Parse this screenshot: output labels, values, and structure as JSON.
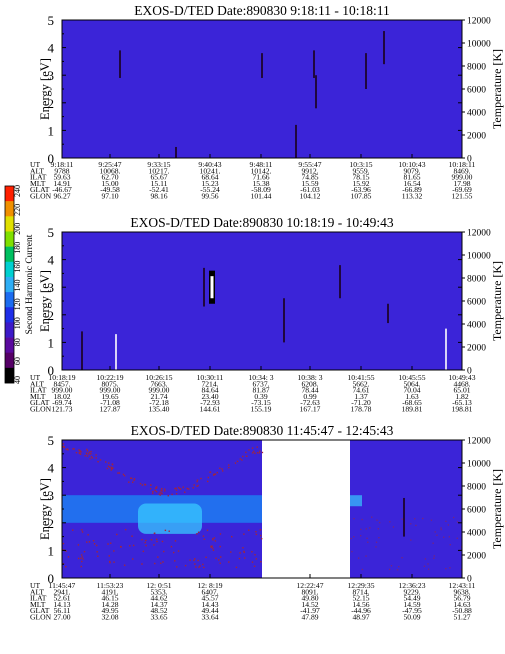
{
  "colors": {
    "background": "#3b24d8",
    "streak": "#1a0018",
    "streak_hot": "#ffffff",
    "hot_blue": "#1f7cf2",
    "cyan": "#38c8ff",
    "dot_red": "#a2263c"
  },
  "colorbar": {
    "label": "Second Harmonic Current",
    "ticks": [
      "40",
      "60",
      "80",
      "100",
      "120",
      "140",
      "160",
      "180",
      "200",
      "220",
      "240"
    ],
    "colors": [
      "#000000",
      "#550066",
      "#5a0a9e",
      "#3c1ac8",
      "#1e2ee8",
      "#1c6cf0",
      "#2eaef5",
      "#00d0d0",
      "#00c060",
      "#80e000",
      "#e0e000",
      "#f09000",
      "#ff2000"
    ]
  },
  "row_labels": [
    "UT",
    "ALT",
    "ILAT",
    "MLT",
    "GLAT",
    "GLON"
  ],
  "chart_data": [
    {
      "type": "heatmap",
      "title": "EXOS-D/TED   Date:890830  9:18:11 - 10:18:11",
      "ylabel": "Energy [eV]",
      "y2label": "Temperature [K]",
      "ylim": [
        0,
        5
      ],
      "y2lim": [
        0,
        12000
      ],
      "yticks": [
        "0",
        "1",
        "2",
        "3",
        "4",
        "5"
      ],
      "y2ticks": [
        "0",
        "2000",
        "4000",
        "6000",
        "8000",
        "10000",
        "12000"
      ],
      "blank_ranges": [],
      "streaks": [
        {
          "x": 0.145,
          "y1": 2.9,
          "y2": 3.9,
          "style": "dark"
        },
        {
          "x": 0.285,
          "y1": 0.0,
          "y2": 0.4,
          "style": "dark"
        },
        {
          "x": 0.5,
          "y1": 2.9,
          "y2": 3.8,
          "style": "dark"
        },
        {
          "x": 0.585,
          "y1": 0.0,
          "y2": 1.2,
          "style": "dark"
        },
        {
          "x": 0.63,
          "y1": 2.9,
          "y2": 3.9,
          "style": "dark"
        },
        {
          "x": 0.635,
          "y1": 1.8,
          "y2": 3.0,
          "style": "dark"
        },
        {
          "x": 0.76,
          "y1": 2.5,
          "y2": 3.8,
          "style": "dark"
        },
        {
          "x": 0.805,
          "y1": 3.4,
          "y2": 4.6,
          "style": "dark"
        }
      ],
      "rows": [
        [
          "9:18:11",
          "9:25:47",
          "9:33:15",
          "9:40:43",
          "9:48:11",
          "9:55:47",
          "10:3:15",
          "10:10:43",
          "10:18:11"
        ],
        [
          "9788",
          "10068.",
          "10217.",
          "10241.",
          "10142.",
          "9912.",
          "9559.",
          "9079.",
          "8469."
        ],
        [
          "59.63",
          "62.70",
          "65.67",
          "68.64",
          "71.66",
          "74.85",
          "78.15",
          "81.65",
          "999.00"
        ],
        [
          "14.91",
          "15.00",
          "15.11",
          "15.23",
          "15.38",
          "15.59",
          "15.92",
          "16.54",
          "17.98"
        ],
        [
          "-46.67",
          "-49.58",
          "-52.41",
          "-55.24",
          "-58.09",
          "-61.03",
          "-63.96",
          "-66.89",
          "-69.69"
        ],
        [
          "96.27",
          "97.10",
          "98.16",
          "99.56",
          "101.44",
          "104.12",
          "107.85",
          "113.32",
          "121.55"
        ]
      ]
    },
    {
      "type": "heatmap",
      "title": "EXOS-D/TED   Date:890830  10:18:19 - 10:49:43",
      "ylabel": "Energy [eV]",
      "y2label": "Temperature [K]",
      "ylim": [
        0,
        5
      ],
      "y2lim": [
        0,
        12000
      ],
      "yticks": [
        "0",
        "1",
        "2",
        "3",
        "4",
        "5"
      ],
      "y2ticks": [
        "0",
        "2000",
        "4000",
        "6000",
        "8000",
        "10000",
        "12000"
      ],
      "blank_ranges": [],
      "streaks": [
        {
          "x": 0.05,
          "y1": 0.0,
          "y2": 1.4,
          "style": "dark"
        },
        {
          "x": 0.135,
          "y1": 0.0,
          "y2": 1.3,
          "style": "white"
        },
        {
          "x": 0.355,
          "y1": 2.3,
          "y2": 3.7,
          "style": "dark"
        },
        {
          "x": 0.375,
          "y1": 2.4,
          "y2": 3.6,
          "style": "whitebox"
        },
        {
          "x": 0.555,
          "y1": 1.0,
          "y2": 2.6,
          "style": "dark"
        },
        {
          "x": 0.695,
          "y1": 2.6,
          "y2": 3.8,
          "style": "dark"
        },
        {
          "x": 0.815,
          "y1": 1.7,
          "y2": 2.4,
          "style": "dark"
        },
        {
          "x": 0.96,
          "y1": 0.0,
          "y2": 1.5,
          "style": "white"
        }
      ],
      "rows": [
        [
          "10:18:19",
          "10:22:19",
          "10:26:15",
          "10:30:11",
          "10:34: 3",
          "10:38: 3",
          "10:41:55",
          "10:45:55",
          "10:49:43"
        ],
        [
          "8457.",
          "8075.",
          "7663.",
          "7214.",
          "6737.",
          "6208.",
          "5662.",
          "5064.",
          "4468."
        ],
        [
          "999.00",
          "999.00",
          "999.00",
          "84.64",
          "81.87",
          "78.44",
          "74.61",
          "70.04",
          "65.01"
        ],
        [
          "18.02",
          "19.65",
          "21.74",
          "23.40",
          "0.39",
          "0.99",
          "1.37",
          "1.63",
          "1.82"
        ],
        [
          "-69.74",
          "-71.08",
          "-72.18",
          "-72.93",
          "-73.15",
          "-72.63",
          "-71.20",
          "-68.65",
          "-65.13"
        ],
        [
          "121.73",
          "127.87",
          "135.40",
          "144.61",
          "155.19",
          "167.17",
          "178.78",
          "189.81",
          "198.81"
        ]
      ]
    },
    {
      "type": "heatmap",
      "title": "EXOS-D/TED   Date:890830  11:45:47 - 12:45:43",
      "ylabel": "Energy [eV]",
      "y2label": "Temperature [K]",
      "ylim": [
        0,
        5
      ],
      "y2lim": [
        0,
        12000
      ],
      "yticks": [
        "0",
        "1",
        "2",
        "3",
        "4",
        "5"
      ],
      "y2ticks": [
        "0",
        "2000",
        "4000",
        "6000",
        "8000",
        "10000",
        "12000"
      ],
      "blank_ranges": [
        [
          0.5,
          0.72
        ]
      ],
      "streaks": [
        {
          "x": 0.855,
          "y1": 1.5,
          "y2": 2.9,
          "style": "dark"
        }
      ],
      "rows": [
        [
          "11:45:47",
          "11:53:23",
          "12: 0:51",
          "12: 8:19",
          "",
          "12:22:47",
          "12:29:35",
          "12:36:23",
          "12:43:11"
        ],
        [
          "2941.",
          "4191.",
          "5353.",
          "6407.",
          "",
          "8091.",
          "8714.",
          "9229.",
          "9638."
        ],
        [
          "52.61",
          "46.15",
          "44.62",
          "45.57",
          "",
          "49.80",
          "52.15",
          "54.49",
          "56.79"
        ],
        [
          "14.13",
          "14.28",
          "14.37",
          "14.43",
          "",
          "14.52",
          "14.56",
          "14.59",
          "14.63"
        ],
        [
          "56.11",
          "49.95",
          "48.52",
          "49.44",
          "",
          "-41.97",
          "-44.96",
          "-47.95",
          "-50.88"
        ],
        [
          "27.00",
          "32.08",
          "33.65",
          "33.64",
          "",
          "47.89",
          "48.97",
          "50.09",
          "51.27"
        ]
      ]
    }
  ]
}
